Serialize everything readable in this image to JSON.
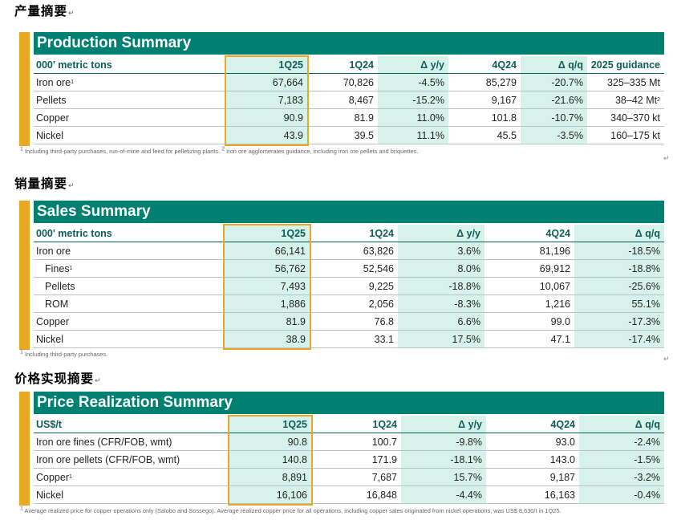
{
  "production": {
    "cn_title": "产量摘要",
    "title": "Production Summary",
    "headers": [
      "000' metric tons",
      "1Q25",
      "1Q24",
      "Δ y/y",
      "4Q24",
      "Δ q/q",
      "2025 guidance"
    ],
    "rows": [
      {
        "label": "Iron ore",
        "sup": "1",
        "cells": [
          "67,664",
          "70,826",
          "-4.5%",
          "85,279",
          "-20.7%",
          "325–335 Mt"
        ],
        "guide_sup": ""
      },
      {
        "label": "Pellets",
        "sup": "",
        "cells": [
          "7,183",
          "8,467",
          "-15.2%",
          "9,167",
          "-21.6%",
          "38–42 Mt"
        ],
        "guide_sup": "2"
      },
      {
        "label": "Copper",
        "sup": "",
        "cells": [
          "90.9",
          "81.9",
          "11.0%",
          "101.8",
          "-10.7%",
          "340–370 kt"
        ],
        "guide_sup": ""
      },
      {
        "label": "Nickel",
        "sup": "",
        "cells": [
          "43.9",
          "39.5",
          "11.1%",
          "45.5",
          "-3.5%",
          "160–175 kt"
        ],
        "guide_sup": ""
      }
    ],
    "footnote_sup1": "1",
    "footnote1": " Including third-party purchases, run-of-mine and feed for pelletizing plants. ",
    "footnote_sup2": "2",
    "footnote2": " Iron ore agglomerates guidance, including iron ore pellets and briquettes."
  },
  "sales": {
    "cn_title": "销量摘要",
    "title": "Sales Summary",
    "headers": [
      "000' metric tons",
      "1Q25",
      "1Q24",
      "Δ y/y",
      "4Q24",
      "Δ q/q"
    ],
    "rows": [
      {
        "label": "Iron ore",
        "sup": "",
        "cells": [
          "66,141",
          "63,826",
          "3.6%",
          "81,196",
          "-18.5%"
        ]
      },
      {
        "label": "Fines",
        "sup": "1",
        "cells": [
          "56,762",
          "52,546",
          "8.0%",
          "69,912",
          "-18.8%"
        ]
      },
      {
        "label": "Pellets",
        "sup": "",
        "cells": [
          "7,493",
          "9,225",
          "-18.8%",
          "10,067",
          "-25.6%"
        ]
      },
      {
        "label": "ROM",
        "sup": "",
        "cells": [
          "1,886",
          "2,056",
          "-8.3%",
          "1,216",
          "55.1%"
        ]
      },
      {
        "label": "Copper",
        "sup": "",
        "cells": [
          "81.9",
          "76.8",
          "6.6%",
          "99.0",
          "-17.3%"
        ]
      },
      {
        "label": "Nickel",
        "sup": "",
        "cells": [
          "38.9",
          "33.1",
          "17.5%",
          "47.1",
          "-17.4%"
        ]
      }
    ],
    "footnote_sup1": "1",
    "footnote1": " Including third-party purchases."
  },
  "price": {
    "cn_title": "价格实现摘要",
    "title": "Price Realization Summary",
    "headers": [
      "US$/t",
      "1Q25",
      "1Q24",
      "Δ y/y",
      "4Q24",
      "Δ q/q"
    ],
    "rows": [
      {
        "label": "Iron ore fines (CFR/FOB, wmt)",
        "sup": "",
        "cells": [
          "90.8",
          "100.7",
          "-9.8%",
          "93.0",
          "-2.4%"
        ]
      },
      {
        "label": "Iron ore pellets (CFR/FOB, wmt)",
        "sup": "",
        "cells": [
          "140.8",
          "171.9",
          "-18.1%",
          "143.0",
          "-1.5%"
        ]
      },
      {
        "label": "Copper",
        "sup": "1",
        "cells": [
          "8,891",
          "7,687",
          "15.7%",
          "9,187",
          "-3.2%"
        ]
      },
      {
        "label": "Nickel",
        "sup": "",
        "cells": [
          "16,106",
          "16,848",
          "-4.4%",
          "16,163",
          "-0.4%"
        ]
      }
    ],
    "footnote_sup1": "1",
    "footnote1": " Average realized price for copper operations only (Salobo and Sossego). Average realized copper price for all operations, including copper sales originated from nickel operations, was US$ 8,630/t in 1Q25."
  },
  "colors": {
    "title_green": "#008070",
    "header_text": "#0c5e56",
    "mint": "#d6f2ea",
    "accent_yellow": "#e9a824"
  },
  "marks": {
    "return_mark": "↵"
  }
}
